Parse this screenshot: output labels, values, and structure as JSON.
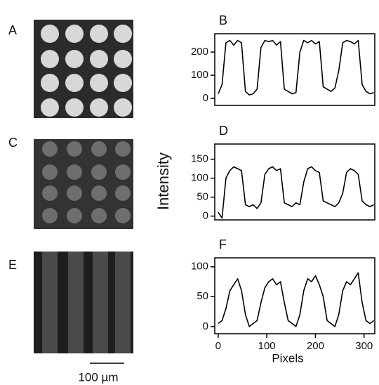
{
  "panel_labels": [
    "A",
    "C",
    "E"
  ],
  "scale_bar": "100 µm",
  "ylabel": "Intensity",
  "chart_data": [
    {
      "type": "line",
      "label": "B",
      "color": "#000",
      "x": [
        0,
        8,
        16,
        24,
        32,
        40,
        48,
        56,
        64,
        72,
        80,
        88,
        96,
        104,
        112,
        120,
        128,
        136,
        144,
        152,
        160,
        168,
        176,
        184,
        192,
        200,
        208,
        216,
        224,
        232,
        240,
        248,
        256,
        264,
        272,
        280,
        288,
        296,
        304,
        312,
        320
      ],
      "values": [
        20,
        60,
        240,
        250,
        230,
        250,
        240,
        30,
        15,
        20,
        40,
        220,
        250,
        245,
        250,
        230,
        245,
        40,
        30,
        20,
        25,
        200,
        250,
        240,
        250,
        235,
        245,
        50,
        40,
        30,
        45,
        120,
        240,
        250,
        245,
        235,
        250,
        60,
        30,
        20,
        25
      ],
      "xlim": [
        -7,
        322
      ],
      "ylim": [
        -30,
        279
      ],
      "yticks": [
        0,
        100,
        200
      ]
    },
    {
      "type": "line",
      "label": "D",
      "color": "#000",
      "x": [
        0,
        8,
        16,
        24,
        32,
        40,
        48,
        56,
        64,
        72,
        80,
        88,
        96,
        104,
        112,
        120,
        128,
        136,
        144,
        152,
        160,
        168,
        176,
        184,
        192,
        200,
        208,
        216,
        224,
        232,
        240,
        248,
        256,
        264,
        272,
        280,
        288,
        296,
        304,
        312,
        320
      ],
      "values": [
        10,
        -5,
        100,
        120,
        130,
        125,
        120,
        30,
        25,
        30,
        20,
        35,
        110,
        125,
        130,
        120,
        125,
        35,
        30,
        25,
        35,
        30,
        90,
        125,
        130,
        120,
        115,
        40,
        35,
        30,
        25,
        35,
        60,
        115,
        125,
        120,
        110,
        40,
        30,
        25,
        30
      ],
      "xlim": [
        -7,
        322
      ],
      "ylim": [
        -10,
        190
      ],
      "yticks": [
        0,
        50,
        100,
        150
      ]
    },
    {
      "type": "line",
      "label": "F",
      "color": "#000",
      "xlabel": "Pixels",
      "x": [
        0,
        8,
        16,
        24,
        32,
        40,
        48,
        56,
        64,
        72,
        80,
        88,
        96,
        104,
        112,
        120,
        128,
        136,
        144,
        152,
        160,
        168,
        176,
        184,
        192,
        200,
        208,
        216,
        224,
        232,
        240,
        248,
        256,
        264,
        272,
        280,
        288,
        296,
        304,
        312,
        320
      ],
      "values": [
        5,
        10,
        30,
        60,
        70,
        80,
        60,
        20,
        0,
        5,
        10,
        40,
        65,
        75,
        80,
        70,
        75,
        40,
        10,
        5,
        0,
        20,
        60,
        80,
        75,
        85,
        70,
        50,
        10,
        5,
        0,
        20,
        60,
        75,
        70,
        80,
        90,
        40,
        10,
        5,
        10
      ],
      "xlim": [
        -7,
        322
      ],
      "ylim": [
        -12,
        115
      ],
      "yticks": [
        0,
        50,
        100
      ],
      "xticks": [
        0,
        100,
        200,
        300
      ]
    }
  ]
}
